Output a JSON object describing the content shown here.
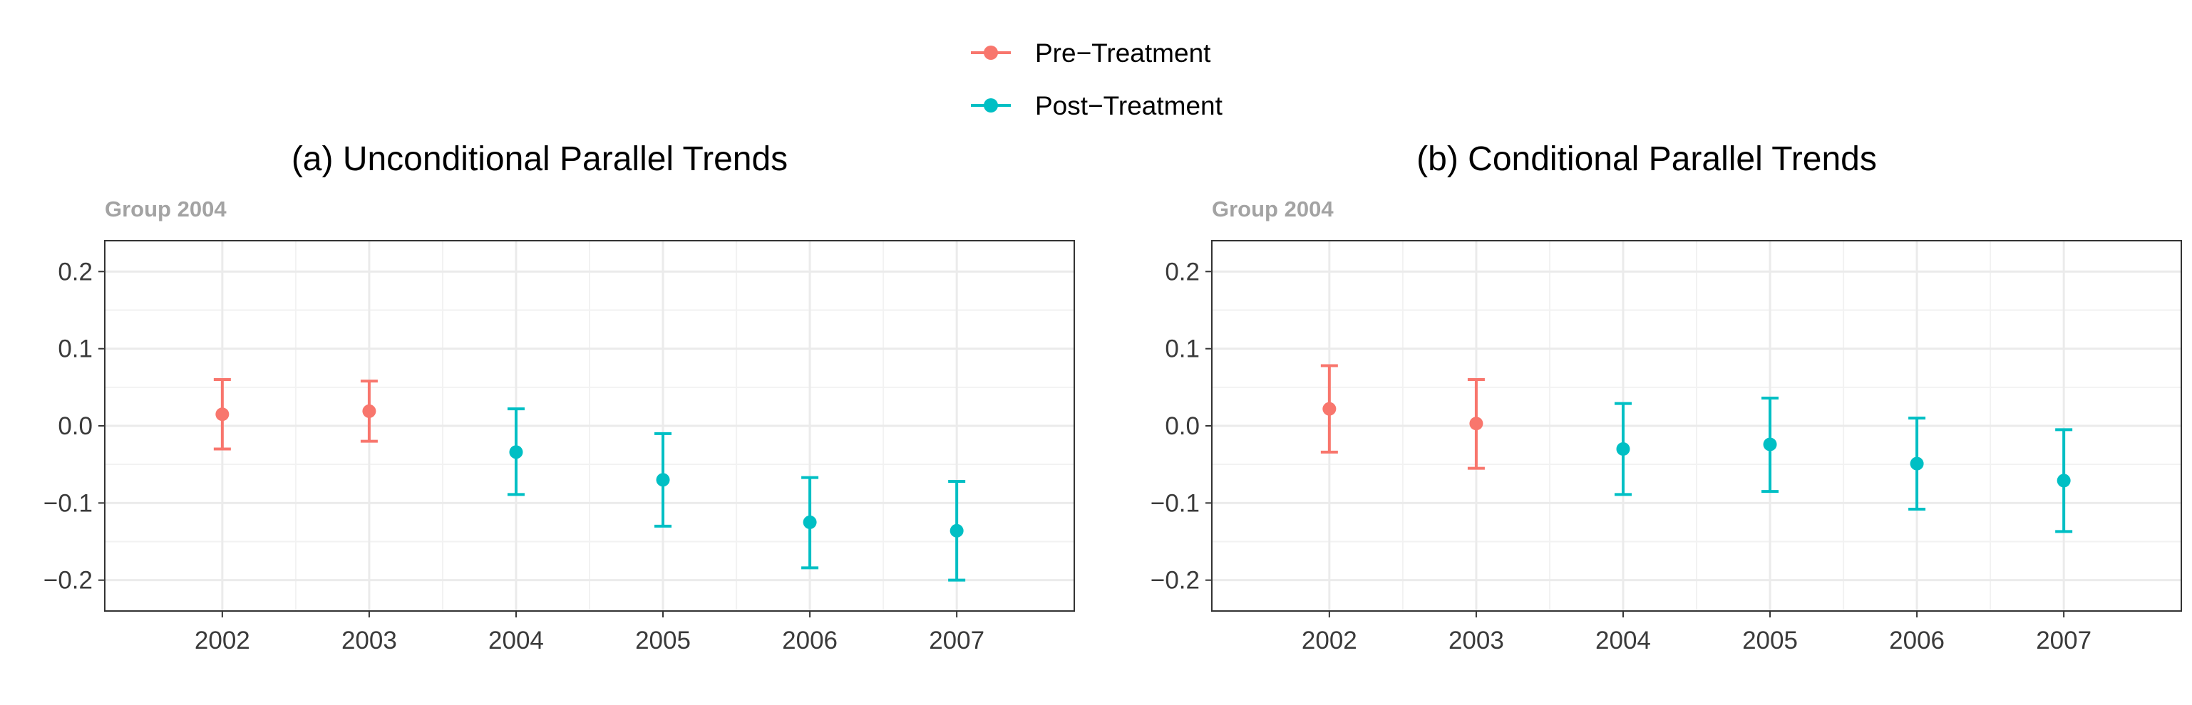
{
  "legend": {
    "entries": [
      {
        "label": "Pre−Treatment",
        "color": "#F8766D"
      },
      {
        "label": "Post−Treatment",
        "color": "#00BFC4"
      }
    ],
    "position": "top"
  },
  "chart_data": [
    {
      "type": "scatter",
      "title": "(a) Unconditional Parallel Trends",
      "strip_label": "Group 2004",
      "xlabel": "",
      "ylabel": "",
      "x": [
        "2002",
        "2003",
        "2004",
        "2005",
        "2006",
        "2007"
      ],
      "ylim": [
        -0.24,
        0.24
      ],
      "yticks": [
        0.2,
        0.1,
        0.0,
        -0.1,
        -0.2
      ],
      "ytick_labels": [
        "0.2",
        "0.1",
        "0.0",
        "−0.1",
        "−0.2"
      ],
      "grid": true,
      "series": [
        {
          "name": "Pre−Treatment",
          "color": "#F8766D",
          "points": [
            {
              "x": "2002",
              "y": 0.015,
              "lower": -0.03,
              "upper": 0.06
            },
            {
              "x": "2003",
              "y": 0.019,
              "lower": -0.02,
              "upper": 0.058
            }
          ]
        },
        {
          "name": "Post−Treatment",
          "color": "#00BFC4",
          "points": [
            {
              "x": "2004",
              "y": -0.034,
              "lower": -0.089,
              "upper": 0.022
            },
            {
              "x": "2005",
              "y": -0.07,
              "lower": -0.13,
              "upper": -0.01
            },
            {
              "x": "2006",
              "y": -0.125,
              "lower": -0.184,
              "upper": -0.067
            },
            {
              "x": "2007",
              "y": -0.136,
              "lower": -0.2,
              "upper": -0.072
            }
          ]
        }
      ]
    },
    {
      "type": "scatter",
      "title": "(b) Conditional Parallel Trends",
      "strip_label": "Group 2004",
      "xlabel": "",
      "ylabel": "",
      "x": [
        "2002",
        "2003",
        "2004",
        "2005",
        "2006",
        "2007"
      ],
      "ylim": [
        -0.24,
        0.24
      ],
      "yticks": [
        0.2,
        0.1,
        0.0,
        -0.1,
        -0.2
      ],
      "ytick_labels": [
        "0.2",
        "0.1",
        "0.0",
        "−0.1",
        "−0.2"
      ],
      "grid": true,
      "series": [
        {
          "name": "Pre−Treatment",
          "color": "#F8766D",
          "points": [
            {
              "x": "2002",
              "y": 0.022,
              "lower": -0.034,
              "upper": 0.078
            },
            {
              "x": "2003",
              "y": 0.003,
              "lower": -0.055,
              "upper": 0.06
            }
          ]
        },
        {
          "name": "Post−Treatment",
          "color": "#00BFC4",
          "points": [
            {
              "x": "2004",
              "y": -0.03,
              "lower": -0.089,
              "upper": 0.029
            },
            {
              "x": "2005",
              "y": -0.024,
              "lower": -0.085,
              "upper": 0.036
            },
            {
              "x": "2006",
              "y": -0.049,
              "lower": -0.108,
              "upper": 0.01
            },
            {
              "x": "2007",
              "y": -0.071,
              "lower": -0.137,
              "upper": -0.005
            }
          ]
        }
      ]
    }
  ]
}
